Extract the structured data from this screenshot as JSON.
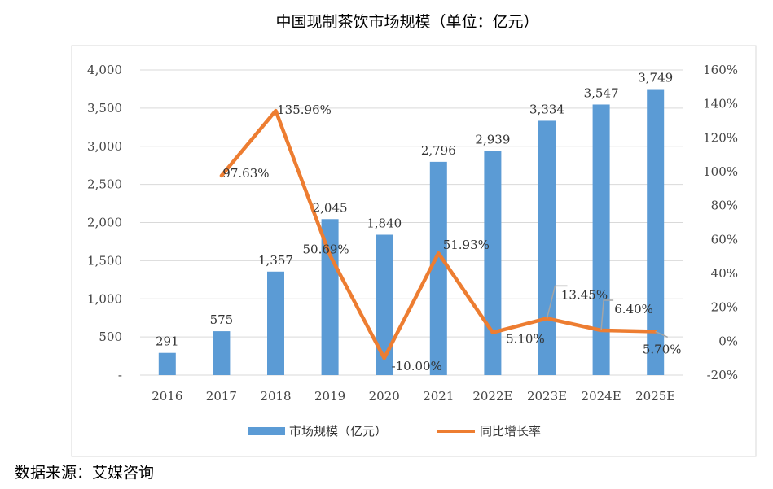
{
  "chart_data": {
    "type": "bar",
    "title": "中国现制茶饮市场规模（单位：亿元）",
    "categories": [
      "2016",
      "2017",
      "2018",
      "2019",
      "2020",
      "2021",
      "2022E",
      "2023E",
      "2024E",
      "2025E"
    ],
    "series": [
      {
        "name": "市场规模（亿元）",
        "type": "bar",
        "axis": "left",
        "color": "#5B9BD5",
        "values": [
          291,
          575,
          1357,
          2045,
          1840,
          2796,
          2939,
          3334,
          3547,
          3749
        ],
        "labels": [
          "291",
          "575",
          "1,357",
          "2,045",
          "1,840",
          "2,796",
          "2,939",
          "3,334",
          "3,547",
          "3,749"
        ]
      },
      {
        "name": "同比增长率",
        "type": "line",
        "axis": "right",
        "color": "#ED7D31",
        "values": [
          null,
          97.63,
          135.96,
          50.69,
          -10.0,
          51.93,
          5.1,
          13.45,
          6.4,
          5.7
        ],
        "labels": [
          "",
          "97.63%",
          "135.96%",
          "50.69%",
          "-10.00%",
          "51.93%",
          "5.10%",
          "13.45%",
          "6.40%",
          "5.70%"
        ]
      }
    ],
    "y_left": {
      "min": 0,
      "max": 4000,
      "ticks": [
        0,
        500,
        1000,
        1500,
        2000,
        2500,
        3000,
        3500,
        4000
      ],
      "tick_labels": [
        "-",
        "500",
        "1,000",
        "1,500",
        "2,000",
        "2,500",
        "3,000",
        "3,500",
        "4,000"
      ]
    },
    "y_right": {
      "min": -20,
      "max": 160,
      "ticks": [
        -20,
        0,
        20,
        40,
        60,
        80,
        100,
        120,
        140,
        160
      ],
      "tick_labels": [
        "-20%",
        "0%",
        "20%",
        "40%",
        "60%",
        "80%",
        "100%",
        "120%",
        "140%",
        "160%"
      ]
    },
    "grid": true,
    "legend": "bottom",
    "leader_line_color": "#A5A5A5"
  },
  "source": "数据来源：艾媒咨询"
}
